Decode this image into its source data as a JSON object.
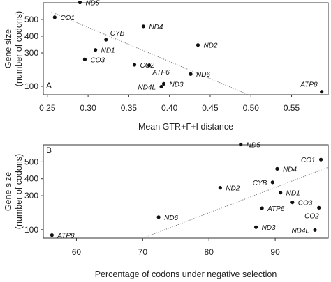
{
  "chart_data": [
    {
      "panel": "A",
      "type": "scatter",
      "xlabel": "Mean GTR+Γ+I  distance",
      "ylabel": "Gene size\n(number of codons)",
      "xlim": [
        0.245,
        0.595
      ],
      "ylim": [
        50,
        600
      ],
      "xticks": [
        0.25,
        0.3,
        0.35,
        0.4,
        0.45,
        0.5,
        0.55
      ],
      "xtick_labels": [
        "0.25",
        "0.30",
        "0.35",
        "0.40",
        "0.45",
        "0.50",
        "0.55"
      ],
      "yticks": [
        100,
        300,
        400,
        500
      ],
      "ytick_labels": [
        "100",
        "300",
        "400",
        "500"
      ],
      "grid": false,
      "points": [
        {
          "label": "ND5",
          "x": 0.29,
          "y": 602,
          "label_pos": "right"
        },
        {
          "label": "CO1",
          "x": 0.259,
          "y": 513,
          "label_pos": "right"
        },
        {
          "label": "ND4",
          "x": 0.368,
          "y": 459,
          "label_pos": "right"
        },
        {
          "label": "CYB",
          "x": 0.322,
          "y": 379,
          "label_pos": "above-right"
        },
        {
          "label": "ND2",
          "x": 0.435,
          "y": 347,
          "label_pos": "right"
        },
        {
          "label": "ND1",
          "x": 0.309,
          "y": 318,
          "label_pos": "right"
        },
        {
          "label": "CO3",
          "x": 0.296,
          "y": 261,
          "label_pos": "right"
        },
        {
          "label": "CO2",
          "x": 0.357,
          "y": 229,
          "label_pos": "right"
        },
        {
          "label": "ATP6",
          "x": 0.375,
          "y": 226,
          "label_pos": "below-right"
        },
        {
          "label": "ND6",
          "x": 0.426,
          "y": 174,
          "label_pos": "right"
        },
        {
          "label": "ND3",
          "x": 0.393,
          "y": 115,
          "label_pos": "right"
        },
        {
          "label": "ND4L",
          "x": 0.39,
          "y": 98,
          "label_pos": "left"
        },
        {
          "label": "ATP8",
          "x": 0.587,
          "y": 68,
          "label_pos": "above-left"
        }
      ],
      "trendline": {
        "x": [
          0.255,
          0.497
        ],
        "y": [
          545,
          50
        ]
      }
    },
    {
      "panel": "B",
      "type": "scatter",
      "xlabel": "Percentage of codons under negative selection",
      "ylabel": "Gene size\n(number of codons)",
      "xlim": [
        55,
        98
      ],
      "ylim": [
        50,
        600
      ],
      "xticks": [
        60,
        70,
        80,
        90
      ],
      "xtick_labels": [
        "60",
        "70",
        "80",
        "90"
      ],
      "yticks": [
        100,
        300,
        400,
        500
      ],
      "ytick_labels": [
        "100",
        "300",
        "400",
        "500"
      ],
      "grid": false,
      "points": [
        {
          "label": "ND5",
          "x": 84.8,
          "y": 602,
          "label_pos": "right"
        },
        {
          "label": "CO1",
          "x": 96.9,
          "y": 513,
          "label_pos": "left"
        },
        {
          "label": "ND4",
          "x": 90.3,
          "y": 459,
          "label_pos": "right"
        },
        {
          "label": "CYB",
          "x": 89.6,
          "y": 379,
          "label_pos": "left"
        },
        {
          "label": "ND2",
          "x": 81.7,
          "y": 347,
          "label_pos": "right"
        },
        {
          "label": "ND1",
          "x": 90.8,
          "y": 318,
          "label_pos": "right"
        },
        {
          "label": "CO3",
          "x": 92.6,
          "y": 261,
          "label_pos": "right"
        },
        {
          "label": "CO2",
          "x": 96.6,
          "y": 229,
          "label_pos": "below"
        },
        {
          "label": "ATP6",
          "x": 88.0,
          "y": 226,
          "label_pos": "right"
        },
        {
          "label": "ND6",
          "x": 72.4,
          "y": 174,
          "label_pos": "right"
        },
        {
          "label": "ND3",
          "x": 87.1,
          "y": 115,
          "label_pos": "right"
        },
        {
          "label": "ND4L",
          "x": 96.0,
          "y": 98,
          "label_pos": "left"
        },
        {
          "label": "ATP8",
          "x": 56.3,
          "y": 68,
          "label_pos": "right"
        }
      ],
      "trendline": {
        "x": [
          70.0,
          98.0
        ],
        "y": [
          50,
          468
        ]
      }
    }
  ]
}
